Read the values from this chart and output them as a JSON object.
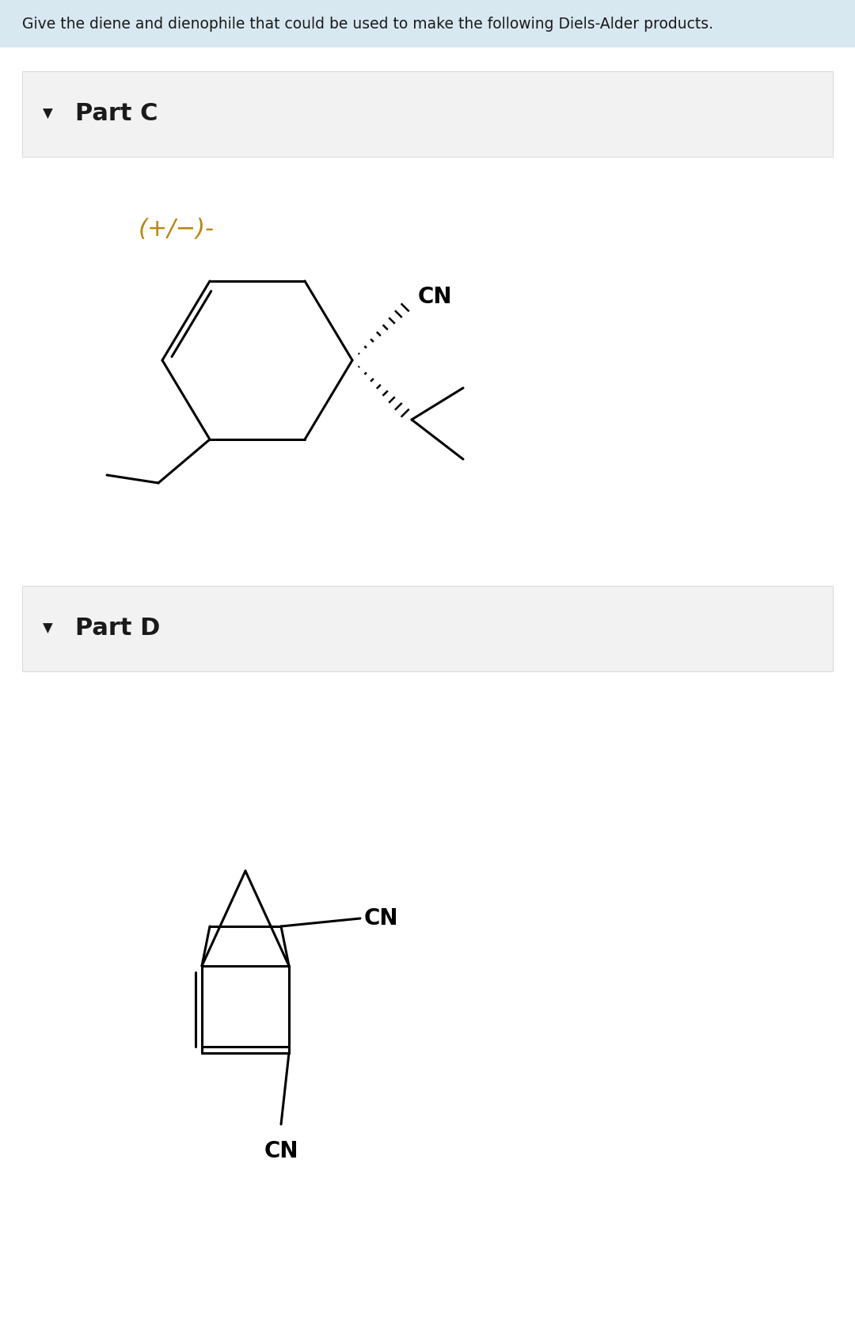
{
  "title": "Give the diene and dienophile that could be used to make the following Diels-Alder products.",
  "title_bg": "#d8e8f0",
  "part_c_label": "Part C",
  "part_d_label": "Part D",
  "part_bg": "#f2f2f2",
  "body_bg": "#ffffff",
  "text_color": "#1a1a1a",
  "cn_color": "#000000",
  "plus_minus_color": "#b8860b",
  "plus_minus_text": "(+/−)-",
  "border_color": "#cccccc"
}
